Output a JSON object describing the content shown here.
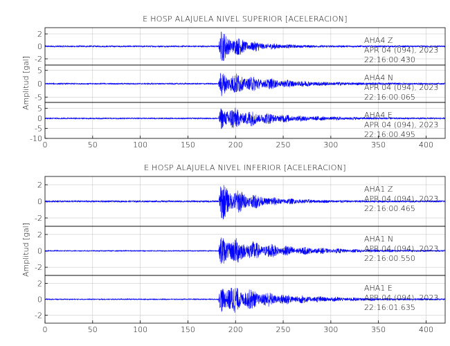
{
  "chart_data": [
    {
      "type": "line",
      "title": "E HOSP ALAJUELA NIVEL SUPERIOR [ACELERACION]",
      "ylabel": "Amplitud [gal]",
      "xlim": [
        0,
        420
      ],
      "xticks": [
        "0",
        "50",
        "100",
        "150",
        "200",
        "250",
        "300",
        "350",
        "400"
      ],
      "onset_s": 182,
      "grid": true,
      "traces": [
        {
          "station": "AHA4",
          "component": "Z",
          "date": "APR 04 (094), 2023",
          "time": "22:16:00.430",
          "ylim": [
            -3,
            3
          ],
          "yticks": [
            "-2",
            "0",
            "2"
          ],
          "peak": 2.8,
          "decay": 0.035,
          "noise": 0.12
        },
        {
          "station": "AHA4",
          "component": "N",
          "date": "APR 04 (094), 2023",
          "time": "22:16:00.065",
          "ylim": [
            -7,
            7
          ],
          "yticks": [
            "-5",
            "0",
            "5"
          ],
          "peak": 5.5,
          "decay": 0.02,
          "noise": 0.25
        },
        {
          "station": "AHA4",
          "component": "E",
          "date": "APR 04 (094), 2023",
          "time": "22:16:00.495",
          "ylim": [
            -10,
            8
          ],
          "yticks": [
            "-10",
            "-5",
            "0",
            "5"
          ],
          "peak": 7.5,
          "decay": 0.02,
          "noise": 0.3
        }
      ]
    },
    {
      "type": "line",
      "title": "E HOSP ALAJUELA NIVEL INFERIOR [ACELERACION]",
      "ylabel": "Amplitud [gal]",
      "xlim": [
        0,
        420
      ],
      "xticks": [
        "0",
        "50",
        "100",
        "150",
        "200",
        "250",
        "300",
        "350",
        "400"
      ],
      "onset_s": 182,
      "grid": true,
      "traces": [
        {
          "station": "AHA1",
          "component": "Z",
          "date": "APR 04 (094), 2023",
          "time": "22:16:00.465",
          "ylim": [
            -3,
            3
          ],
          "yticks": [
            "-2",
            "0",
            "2"
          ],
          "peak": 2.5,
          "decay": 0.03,
          "noise": 0.1
        },
        {
          "station": "AHA1",
          "component": "N",
          "date": "APR 04 (094), 2023",
          "time": "22:16:00.550",
          "ylim": [
            -3,
            3
          ],
          "yticks": [
            "-2",
            "0",
            "2"
          ],
          "peak": 2.2,
          "decay": 0.018,
          "noise": 0.06
        },
        {
          "station": "AHA1",
          "component": "E",
          "date": "APR 04 (094), 2023",
          "time": "22:16:01.635",
          "ylim": [
            -3,
            3
          ],
          "yticks": [
            "-2",
            "0",
            "2"
          ],
          "peak": 2.3,
          "decay": 0.018,
          "noise": 0.06
        }
      ]
    }
  ],
  "colors": {
    "trace": "#0000ff",
    "grid": "#bfbfbf",
    "axis": "#000000"
  }
}
